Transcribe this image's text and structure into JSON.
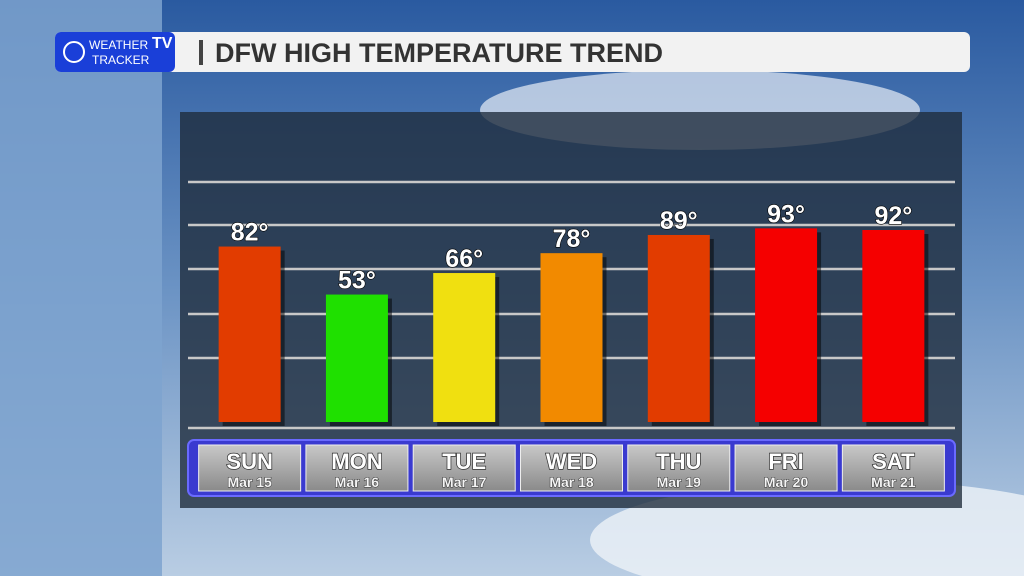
{
  "header": {
    "logo": {
      "line1": "WEATHER",
      "tv": "TV",
      "line2": "TRACKER"
    }
  },
  "chart_data": {
    "type": "bar",
    "title": "DFW HIGH TEMPERATURE TREND",
    "categories": [
      "SUN",
      "MON",
      "TUE",
      "WED",
      "THU",
      "FRI",
      "SAT"
    ],
    "dates": [
      "Mar 15",
      "Mar 16",
      "Mar 17",
      "Mar 18",
      "Mar 19",
      "Mar 20",
      "Mar 21"
    ],
    "values": [
      82,
      53,
      66,
      78,
      89,
      93,
      92
    ],
    "value_labels": [
      "82°",
      "53°",
      "66°",
      "78°",
      "89°",
      "93°",
      "92°"
    ],
    "colors": [
      "#e23c00",
      "#1fe000",
      "#f0e010",
      "#f28a00",
      "#e23c00",
      "#f50000",
      "#f50000"
    ],
    "ylim": [
      -24,
      121
    ]
  }
}
